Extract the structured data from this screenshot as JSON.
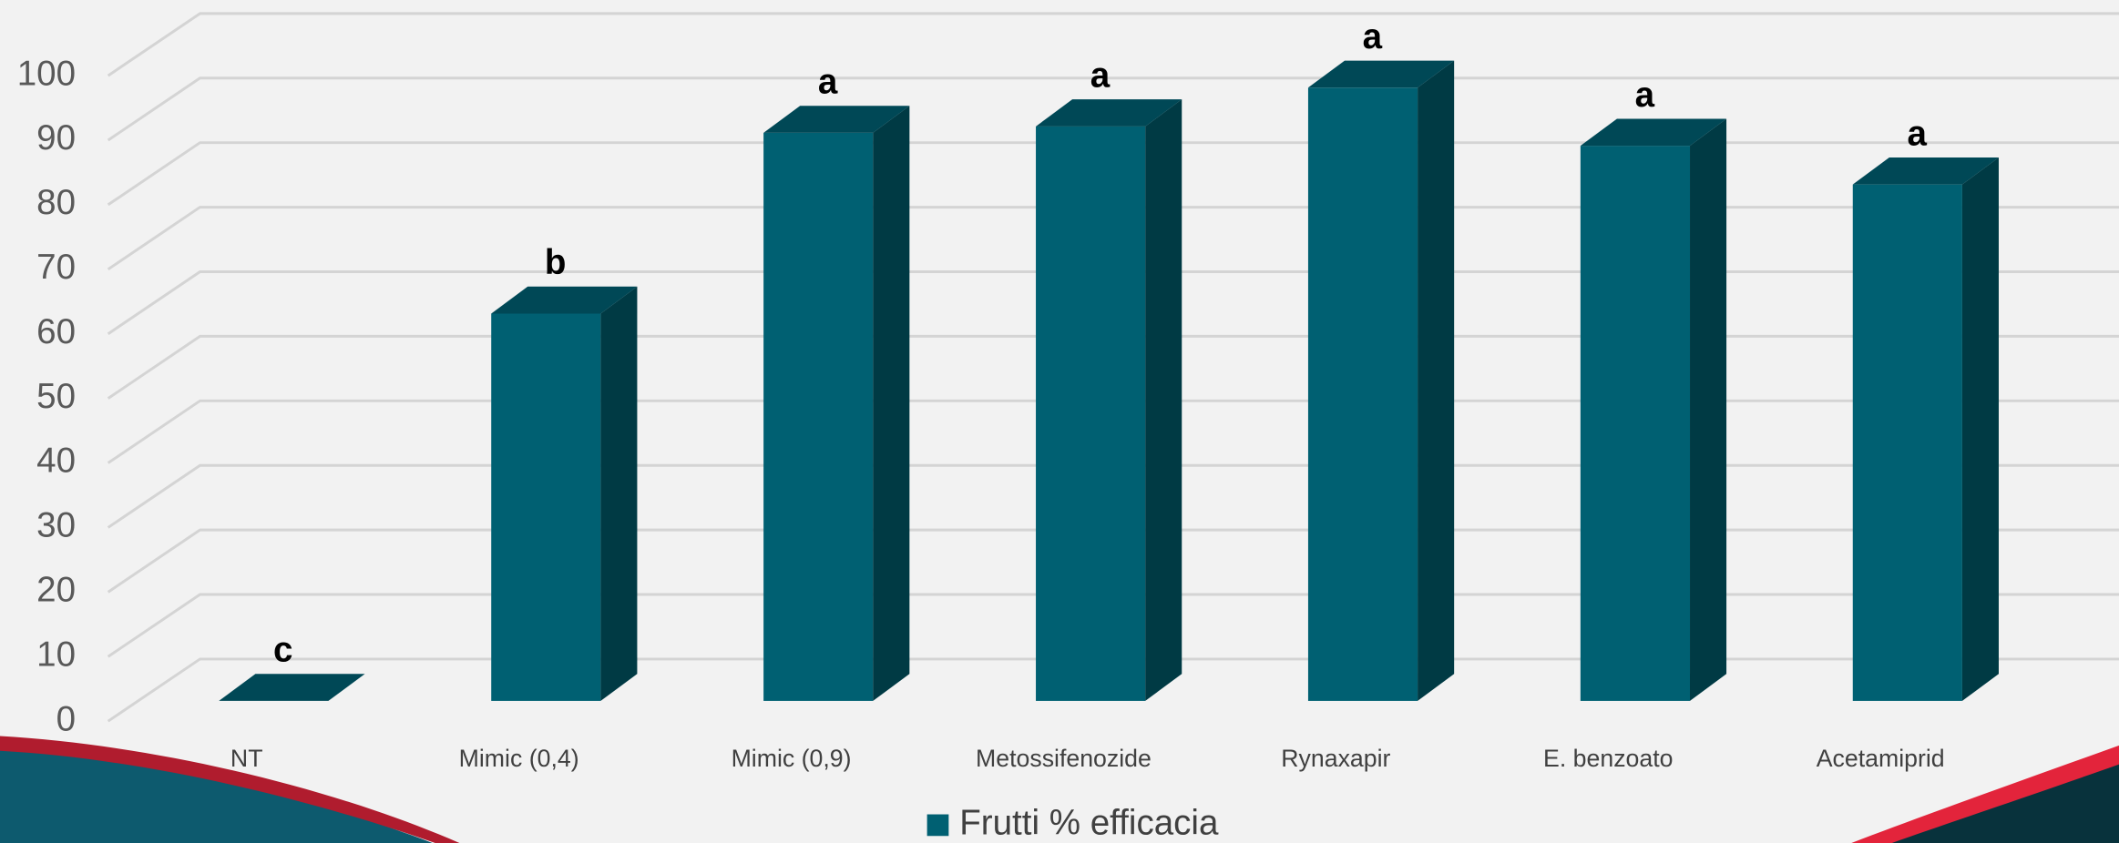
{
  "chart_data": {
    "type": "bar3d",
    "categories": [
      "NT",
      "Mimic (0,4)",
      "Mimic (0,9)",
      "Metossifenozide",
      "Rynaxapir",
      "E. benzoato",
      "Acetamiprid"
    ],
    "series": [
      {
        "name": "Frutti % efficacia",
        "color": "#006072",
        "values": [
          0,
          60,
          88,
          89,
          95,
          86,
          80
        ]
      }
    ],
    "annotations": [
      "c",
      "b",
      "a",
      "a",
      "a",
      "a",
      "a"
    ],
    "ylim": [
      0,
      100
    ],
    "yticks": [
      0,
      10,
      20,
      30,
      40,
      50,
      60,
      70,
      80,
      90,
      100
    ],
    "grid": true,
    "legend": "bottom"
  }
}
